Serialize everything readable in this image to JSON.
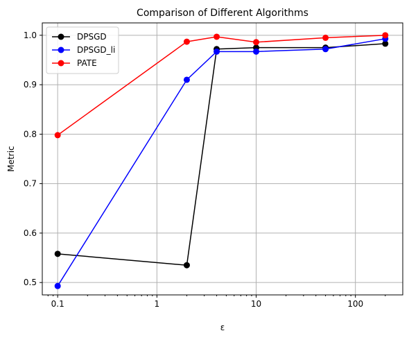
{
  "chart_data": {
    "type": "line",
    "title": "Comparison of Different Algorithms",
    "xlabel": "ε",
    "ylabel": "Metric",
    "x_scale": "log",
    "xlim": [
      0.07,
      300
    ],
    "ylim": [
      0.475,
      1.025
    ],
    "x_ticks": [
      0.1,
      1,
      10,
      100
    ],
    "x_tick_labels": [
      "0.1",
      "1",
      "10",
      "100"
    ],
    "y_ticks": [
      0.5,
      0.6,
      0.7,
      0.8,
      0.9,
      1.0
    ],
    "y_tick_labels": [
      "0.5",
      "0.6",
      "0.7",
      "0.8",
      "0.9",
      "1.0"
    ],
    "grid": true,
    "legend_position": "top-left",
    "x": [
      0.1,
      2,
      4,
      10,
      50,
      200
    ],
    "series": [
      {
        "name": "DPSGD",
        "color": "#000000",
        "values": [
          0.558,
          0.535,
          0.972,
          0.975,
          0.975,
          0.983
        ]
      },
      {
        "name": "DPSGD_li",
        "color": "#0000ff",
        "values": [
          0.493,
          0.91,
          0.967,
          0.967,
          0.972,
          0.993
        ]
      },
      {
        "name": "PATE",
        "color": "#ff0000",
        "values": [
          0.798,
          0.987,
          0.997,
          0.986,
          0.995,
          1.0
        ]
      }
    ]
  }
}
